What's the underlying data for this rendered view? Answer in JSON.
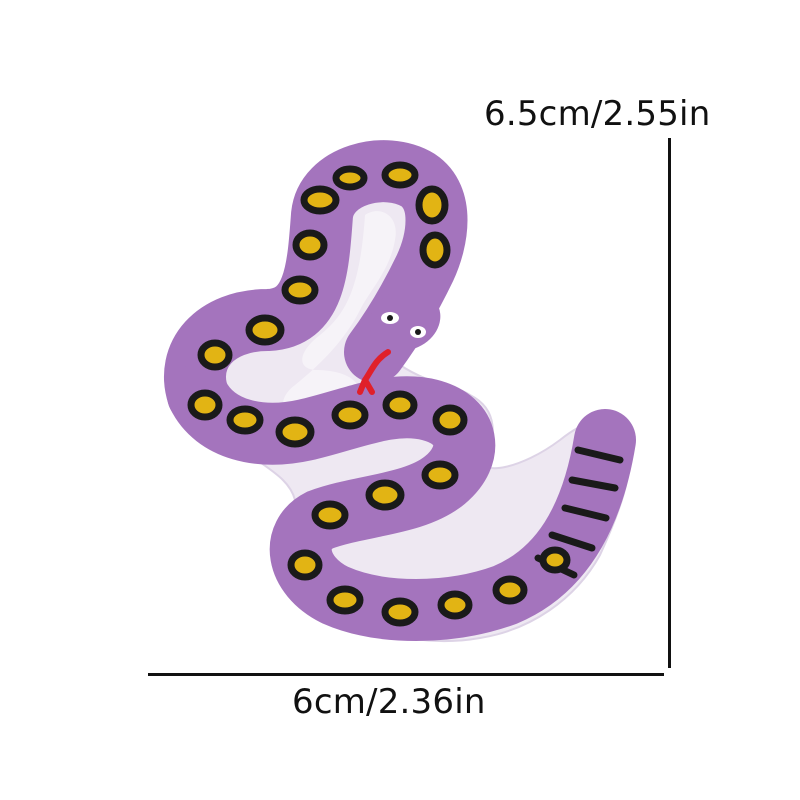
{
  "dimensions": {
    "height_label": "6.5cm/2.55in",
    "width_label": "6cm/2.36in"
  },
  "colors": {
    "background": "#ffffff",
    "fabric": "#eee8f2",
    "body": "#a474bd",
    "body_dark": "#8a5aa4",
    "spot_outline": "#1a1a1a",
    "spot_fill": "#e2b414",
    "tongue": "#e0202a",
    "dimension_lines": "#111111"
  }
}
